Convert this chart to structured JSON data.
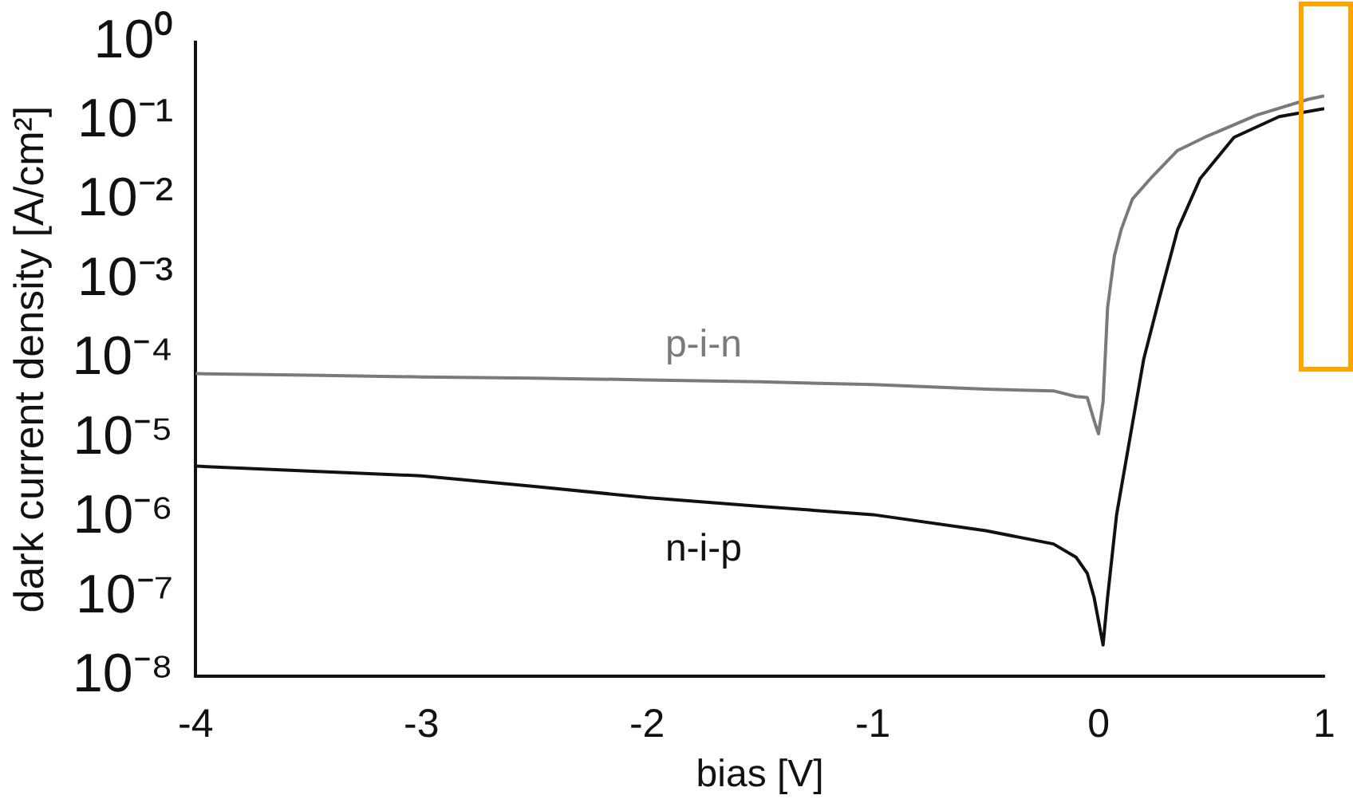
{
  "chart_data": {
    "type": "line",
    "xlabel": "bias [V]",
    "ylabel": "dark current density [A/cm²]",
    "log": "y",
    "marker": "none",
    "xlim": [
      -4,
      1
    ],
    "xticks": [
      -4,
      -3,
      -2,
      -1,
      0,
      1
    ],
    "ylim": [
      1e-08,
      1
    ],
    "yticks": [
      {
        "value": 1,
        "label": "10⁰"
      },
      {
        "value": 0.1,
        "label": "10⁻¹"
      },
      {
        "value": 0.01,
        "label": "10⁻²"
      },
      {
        "value": 0.001,
        "label": "10⁻³"
      },
      {
        "value": 0.0001,
        "label": "10⁻⁴"
      },
      {
        "value": 1e-05,
        "label": "10⁻⁵"
      },
      {
        "value": 1e-06,
        "label": "10⁻⁶"
      },
      {
        "value": 1e-07,
        "label": "10⁻⁷"
      },
      {
        "value": 1e-08,
        "label": "10⁻⁸"
      }
    ],
    "series": [
      {
        "name": "p-i-n",
        "color": "#7a7a7a",
        "x": [
          -4,
          -3.5,
          -3,
          -2.5,
          -2,
          -1.5,
          -1,
          -0.5,
          -0.2,
          -0.1,
          -0.05,
          -0.02,
          0,
          0.02,
          0.04,
          0.07,
          0.1,
          0.15,
          0.23,
          0.35,
          0.47,
          0.7,
          0.93,
          1
        ],
        "values": [
          6.6e-05,
          6.3e-05,
          6e-05,
          5.8e-05,
          5.5e-05,
          5.2e-05,
          4.8e-05,
          4.2e-05,
          4e-05,
          3.4e-05,
          3.3e-05,
          1.7e-05,
          1.15e-05,
          2.9e-05,
          0.00045,
          0.002,
          0.0043,
          0.0105,
          0.019,
          0.043,
          0.063,
          0.12,
          0.19,
          0.21
        ]
      },
      {
        "name": "n-i-p",
        "color": "#111111",
        "x": [
          -4,
          -3.5,
          -3,
          -2.5,
          -2,
          -1.5,
          -1,
          -0.5,
          -0.2,
          -0.1,
          -0.05,
          -0.02,
          0,
          0.02,
          0.04,
          0.08,
          0.14,
          0.2,
          0.27,
          0.35,
          0.45,
          0.6,
          0.8,
          1
        ],
        "values": [
          4.5e-06,
          3.9e-06,
          3.4e-06,
          2.5e-06,
          1.8e-06,
          1.4e-06,
          1.1e-06,
          6.9e-07,
          4.7e-07,
          3.2e-07,
          2e-07,
          1e-07,
          5e-08,
          2.5e-08,
          1e-07,
          1.1e-06,
          1.05e-05,
          0.0001,
          0.0006,
          0.0043,
          0.019,
          0.063,
          0.115,
          0.145
        ]
      }
    ]
  }
}
